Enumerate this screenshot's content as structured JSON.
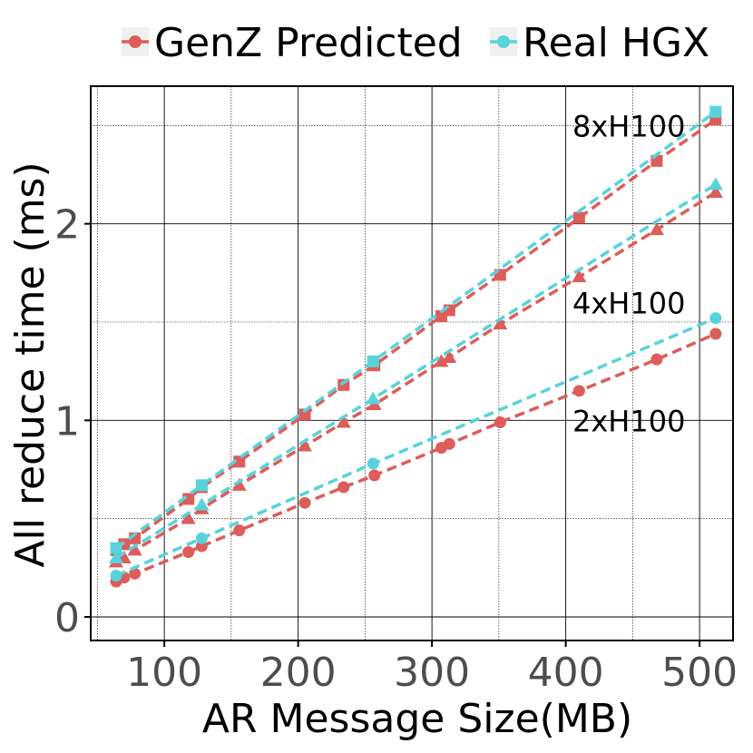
{
  "chart_data": {
    "type": "line",
    "title": "",
    "xlabel": "AR Message Size(MB)",
    "ylabel": "All reduce time (ms)",
    "xlim": [
      45,
      525
    ],
    "ylim": [
      -0.12,
      2.7
    ],
    "xticks": [
      100,
      200,
      300,
      400,
      500
    ],
    "yticks": [
      0,
      1,
      2
    ],
    "grid": true,
    "legend_position": "top",
    "colors": {
      "genz": "#dc5d5a",
      "real": "#57d3db"
    },
    "series": [
      {
        "name": "GenZ Predicted",
        "label": "8xH100",
        "color": "#dc5d5a",
        "marker": "square",
        "x": [
          64,
          70,
          78,
          118,
          128,
          156,
          205,
          234,
          257,
          307,
          313,
          351,
          410,
          468,
          512
        ],
        "y": [
          0.34,
          0.37,
          0.4,
          0.6,
          0.66,
          0.79,
          1.03,
          1.18,
          1.28,
          1.53,
          1.56,
          1.74,
          2.03,
          2.32,
          2.53
        ]
      },
      {
        "name": "Real HGX",
        "label": "8xH100",
        "color": "#57d3db",
        "marker": "square",
        "x": [
          64,
          128,
          256,
          512
        ],
        "y": [
          0.35,
          0.67,
          1.3,
          2.57
        ]
      },
      {
        "name": "GenZ Predicted",
        "label": "4xH100",
        "color": "#dc5d5a",
        "marker": "triangle",
        "x": [
          64,
          70,
          78,
          118,
          128,
          156,
          205,
          234,
          257,
          307,
          313,
          351,
          410,
          468,
          512
        ],
        "y": [
          0.28,
          0.3,
          0.34,
          0.5,
          0.55,
          0.67,
          0.87,
          0.99,
          1.08,
          1.3,
          1.32,
          1.49,
          1.73,
          1.97,
          2.16
        ]
      },
      {
        "name": "Real HGX",
        "label": "4xH100",
        "color": "#57d3db",
        "marker": "triangle",
        "x": [
          64,
          128,
          256,
          512
        ],
        "y": [
          0.3,
          0.57,
          1.11,
          2.2
        ]
      },
      {
        "name": "GenZ Predicted",
        "label": "2xH100",
        "color": "#dc5d5a",
        "marker": "circle",
        "x": [
          64,
          70,
          78,
          118,
          128,
          156,
          205,
          234,
          257,
          307,
          313,
          351,
          410,
          468,
          512
        ],
        "y": [
          0.18,
          0.2,
          0.22,
          0.33,
          0.36,
          0.44,
          0.58,
          0.66,
          0.72,
          0.86,
          0.88,
          0.99,
          1.15,
          1.31,
          1.44
        ]
      },
      {
        "name": "Real HGX",
        "label": "2xH100",
        "color": "#57d3db",
        "marker": "circle",
        "x": [
          64,
          128,
          256,
          512
        ],
        "y": [
          0.21,
          0.4,
          0.78,
          1.52
        ]
      }
    ],
    "legend": [
      {
        "label": "GenZ Predicted",
        "color": "#dc5d5a"
      },
      {
        "label": "Real HGX",
        "color": "#57d3db"
      }
    ],
    "annotations": [
      {
        "text": "8xH100",
        "x": 405,
        "y": 2.5
      },
      {
        "text": "4xH100",
        "x": 405,
        "y": 1.6
      },
      {
        "text": "2xH100",
        "x": 405,
        "y": 1.0
      }
    ]
  }
}
